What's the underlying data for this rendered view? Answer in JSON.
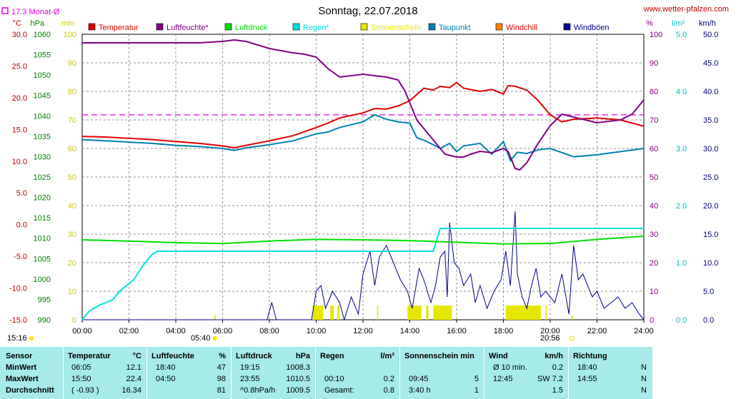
{
  "title": "Sonntag, 22.07.2018",
  "site": "www.wetter-pfalzen.com",
  "monthly_avg_label": "17.3 Monat-Ø",
  "colors": {
    "temperature": "#e00000",
    "humidity": "#800080",
    "pressure": "#00e000",
    "rain": "#00e0e0",
    "sunshine": "#e6e600",
    "dewpoint": "#0080b0",
    "windchill": "#ff8000",
    "gust": "#000090",
    "monthly_avg": "#e000e0",
    "stats_bg": "#a6eaea"
  },
  "chart_data": {
    "type": "line",
    "title": "Sonntag, 22.07.2018",
    "legend": [
      "Temperatur",
      "Luftfeuchte*",
      "Luftdruck",
      "Regen*",
      "Sonnenschein",
      "Taupunkt",
      "Windchill",
      "Windböen"
    ],
    "x_ticks": [
      "00:00",
      "02:00",
      "04:00",
      "06:00",
      "08:00",
      "10:00",
      "12:00",
      "14:00",
      "16:00",
      "18:00",
      "20:00",
      "22:00",
      "24:00"
    ],
    "sunrise": "05:40",
    "sunset": "20:56",
    "sunshine_hours_left": "15:16",
    "axes": {
      "temp": {
        "unit": "°C",
        "ylim": [
          -15,
          30
        ],
        "ticks": [
          "30.0",
          "25.0",
          "20.0",
          "15.0",
          "10.0",
          "5.0",
          "0.0",
          "-5.0",
          "-10.0",
          "-15.0"
        ]
      },
      "pressure": {
        "unit": "hPa",
        "ylim": [
          990,
          1060
        ],
        "ticks": [
          "1060",
          "1055",
          "1050",
          "1045",
          "1040",
          "1035",
          "1030",
          "1025",
          "1020",
          "1015",
          "1010",
          "1005",
          "1000",
          "995",
          "990"
        ]
      },
      "minutes": {
        "unit": "min",
        "ylim": [
          0,
          100
        ],
        "ticks": [
          "100",
          "90",
          "80",
          "70",
          "60",
          "50",
          "40",
          "30",
          "20",
          "10",
          "0"
        ]
      },
      "humidity": {
        "unit": "%",
        "ylim": [
          0,
          100
        ],
        "ticks": [
          "100",
          "90",
          "80",
          "70",
          "60",
          "50",
          "40",
          "30",
          "20",
          "10",
          "0"
        ]
      },
      "rain": {
        "unit": "l/m²",
        "ylim": [
          0,
          5
        ],
        "ticks": [
          "5.0",
          "4.0",
          "3.0",
          "2.0",
          "1.0",
          "0.0"
        ]
      },
      "wind": {
        "unit": "km/h",
        "ylim": [
          0,
          50
        ],
        "ticks": [
          "50.0",
          "45.0",
          "40.0",
          "35.0",
          "30.0",
          "25.0",
          "20.0",
          "15.0",
          "10.0",
          "5.0",
          "0.0"
        ]
      }
    },
    "monthly_avg_temp": 17.3,
    "series": [
      {
        "name": "Temperatur",
        "axis": "temp",
        "x": [
          0,
          1,
          2,
          3,
          4,
          5,
          6,
          6.5,
          7,
          8,
          9,
          10,
          10.5,
          11,
          12,
          12.5,
          13,
          13.5,
          14,
          14.3,
          14.6,
          15,
          15.3,
          15.7,
          16,
          16.3,
          17,
          17.5,
          18,
          18.2,
          18.5,
          19,
          19.5,
          20,
          20.5,
          21,
          22,
          23,
          24
        ],
        "y": [
          13.9,
          13.8,
          13.6,
          13.4,
          13.1,
          12.8,
          12.4,
          12.1,
          12.5,
          13.2,
          14,
          15.3,
          16,
          16.8,
          17.6,
          18.3,
          18.2,
          18.7,
          19.5,
          20.5,
          21.5,
          21.2,
          21.8,
          21.6,
          22.4,
          21.5,
          21.0,
          21.3,
          20.6,
          21.9,
          21.8,
          21.2,
          19.5,
          17.3,
          16.2,
          16.6,
          16.8,
          16.5,
          15.5
        ]
      },
      {
        "name": "Luftfeuchte*",
        "axis": "humidity",
        "x": [
          0,
          1,
          2,
          3,
          4,
          5,
          6,
          6.5,
          7,
          8,
          9,
          9.5,
          10,
          10.5,
          11,
          12,
          12.5,
          13,
          13.5,
          13.8,
          14,
          14.3,
          14.6,
          14.9,
          15.2,
          15.5,
          16,
          16.3,
          16.6,
          17,
          17.5,
          18,
          18.2,
          18.5,
          18.7,
          19,
          19.5,
          20,
          20.5,
          21,
          22,
          23,
          23.5,
          24
        ],
        "y": [
          97,
          97,
          97,
          97,
          97,
          97,
          97.5,
          98,
          97.5,
          95,
          93.5,
          93,
          92,
          88,
          85,
          86,
          85.5,
          85,
          84,
          80,
          76,
          70,
          67,
          64,
          61,
          58,
          57,
          57,
          58,
          59,
          58.5,
          60,
          59,
          53,
          52.5,
          55,
          62,
          68,
          72,
          71,
          69,
          70,
          72,
          77
        ]
      },
      {
        "name": "Luftdruck",
        "axis": "pressure",
        "x": [
          0,
          2,
          4,
          6,
          8,
          10,
          12,
          14,
          16,
          18,
          20,
          22,
          24
        ],
        "y": [
          1009.6,
          1009.3,
          1008.9,
          1008.7,
          1009.3,
          1009.7,
          1009.6,
          1009.4,
          1009.0,
          1008.6,
          1008.7,
          1009.7,
          1010.5
        ]
      },
      {
        "name": "Regen*",
        "axis": "rain",
        "x": [
          0,
          0.3,
          0.7,
          1,
          1.3,
          1.6,
          1.9,
          2.2,
          2.6,
          3,
          3.2,
          14,
          15,
          15.3,
          24
        ],
        "y": [
          0,
          0.15,
          0.25,
          0.3,
          0.35,
          0.5,
          0.6,
          0.7,
          0.95,
          1.15,
          1.2,
          1.2,
          1.2,
          1.6,
          1.6
        ]
      },
      {
        "name": "Taupunkt",
        "axis": "temp",
        "x": [
          0,
          1,
          2,
          3,
          4,
          5,
          6,
          6.5,
          7,
          8,
          9,
          10,
          10.5,
          11,
          12,
          12.5,
          13,
          13.5,
          14,
          14.3,
          14.6,
          15,
          15.3,
          15.7,
          16,
          16.3,
          17,
          17.5,
          18,
          18.3,
          18.6,
          19,
          19.5,
          20,
          21,
          22,
          23,
          24
        ],
        "y": [
          13.4,
          13.2,
          13.0,
          12.8,
          12.5,
          12.3,
          12.0,
          11.7,
          12.1,
          12.6,
          13.2,
          14.3,
          14.6,
          15.3,
          16.2,
          17.3,
          16.6,
          16.2,
          16.0,
          13.7,
          13.3,
          12.6,
          12.0,
          12.8,
          11.5,
          12.4,
          12.8,
          11.1,
          13.1,
          10.1,
          11.4,
          11.2,
          11.8,
          12.0,
          10.7,
          11.0,
          11.5,
          12.0
        ]
      },
      {
        "name": "Windböen",
        "axis": "wind",
        "x": [
          0,
          7.9,
          8.1,
          8.3,
          9.8,
          10,
          10.2,
          10.4,
          10.7,
          11,
          11.2,
          11.5,
          11.8,
          12,
          12.3,
          12.5,
          12.7,
          13,
          13.3,
          13.6,
          13.9,
          14.1,
          14.4,
          14.6,
          14.9,
          15.1,
          15.3,
          15.5,
          15.6,
          15.7,
          15.9,
          16.1,
          16.3,
          16.6,
          16.8,
          17,
          17.3,
          17.6,
          17.9,
          18.1,
          18.3,
          18.5,
          18.6,
          18.8,
          19,
          19.2,
          19.4,
          19.6,
          19.8,
          20,
          20.2,
          20.5,
          20.8,
          21,
          21.2,
          21.4,
          21.6,
          21.8,
          22,
          22.3,
          22.6,
          22.9,
          23.2,
          23.5,
          23.8,
          24
        ],
        "y": [
          0,
          0,
          3,
          0,
          0,
          5,
          6,
          2,
          5,
          3,
          0,
          4,
          1,
          8,
          12,
          6,
          11,
          13,
          10,
          7,
          5,
          2,
          9,
          7,
          3,
          6,
          11,
          12,
          4,
          17,
          10,
          9,
          6,
          8,
          3,
          6,
          2,
          5,
          7,
          12,
          6,
          19,
          8,
          4,
          2,
          6,
          9,
          4,
          5,
          4,
          3,
          8,
          1,
          13,
          7,
          8,
          6,
          4,
          5,
          2,
          3,
          4,
          2,
          3,
          1,
          0
        ]
      }
    ],
    "sunshine_bars": [
      {
        "from": 9.85,
        "to": 10.3
      },
      {
        "from": 10.6,
        "to": 10.75
      },
      {
        "from": 10.9,
        "to": 11.0
      },
      {
        "from": 12.6,
        "to": 12.65
      },
      {
        "from": 13.9,
        "to": 14.5
      },
      {
        "from": 14.7,
        "to": 14.8
      },
      {
        "from": 15.0,
        "to": 15.8
      },
      {
        "from": 18.1,
        "to": 19.6
      },
      {
        "from": 19.8,
        "to": 19.85
      }
    ],
    "sunshine_bar_height": 5
  },
  "stats": {
    "headers": {
      "sensor": "Sensor",
      "temp": "Temperatur",
      "temp_unit": "°C",
      "hum": "Luftfeuchte",
      "hum_unit": "%",
      "press": "Luftdruck",
      "press_unit": "hPa",
      "rain": "Regen",
      "rain_unit": "l/m²",
      "sun": "Sonnenschein min",
      "wind": "Wind",
      "wind_unit": "km/h",
      "dir": "Richtung"
    },
    "rows": [
      {
        "label": "MinWert",
        "temp_time": "06:05",
        "temp_val": "12.1",
        "hum_time": "18:40",
        "hum_val": "47",
        "press_time": "19:15",
        "press_val": "1008.3",
        "rain_time": "",
        "rain_val": "",
        "sun_time": "",
        "sun_val": "",
        "wind_time": "Ø 10 min.",
        "wind_val": "0.2",
        "dir_time": "18:40",
        "dir_val": "N"
      },
      {
        "label": "MaxWert",
        "temp_time": "15:50",
        "temp_val": "22.4",
        "hum_time": "04:50",
        "hum_val": "98",
        "press_time": "23:55",
        "press_val": "1010.5",
        "rain_time": "00:10",
        "rain_val": "0.2",
        "sun_time": "09:45",
        "sun_val": "5",
        "wind_time": "12:45",
        "wind_val": "SW 7.2",
        "dir_time": "14:55",
        "dir_val": "N"
      },
      {
        "label": "Durchschnitt",
        "temp_time": "( -0.93 )",
        "temp_val": "16.34",
        "hum_time": "",
        "hum_val": "81",
        "press_time": "^0.8hPa/h",
        "press_val": "1009.5",
        "rain_time": "Gesamt:",
        "rain_val": "0.8",
        "sun_time": "3:40 h",
        "sun_val": "1",
        "wind_time": "",
        "wind_val": "1.5",
        "dir_time": "",
        "dir_val": "N"
      }
    ]
  }
}
